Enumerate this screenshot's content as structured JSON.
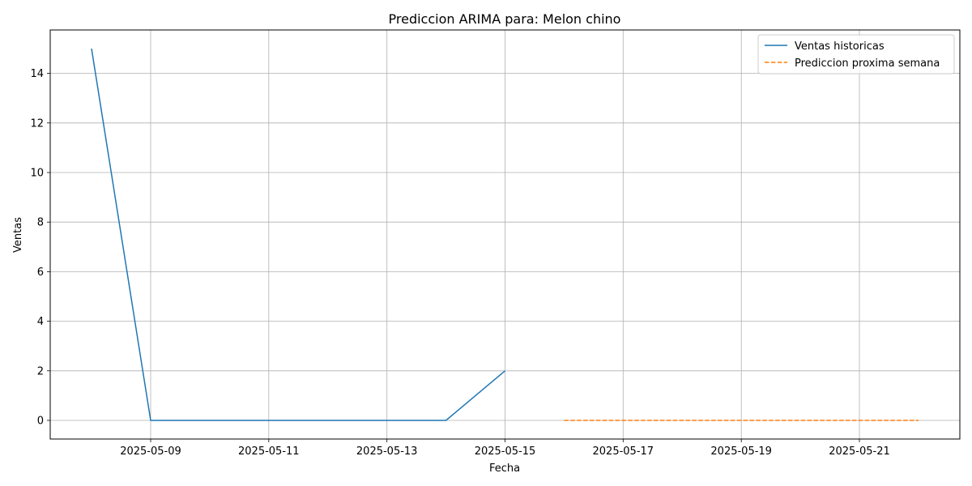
{
  "chart_data": {
    "type": "line",
    "title": "Prediccion ARIMA para: Melon chino",
    "xlabel": "Fecha",
    "ylabel": "Ventas",
    "grid": true,
    "legend_position": "top-right",
    "x_ticks": [
      "2025-05-09",
      "2025-05-11",
      "2025-05-13",
      "2025-05-15",
      "2025-05-17",
      "2025-05-19",
      "2025-05-21"
    ],
    "y_ticks": [
      0,
      2,
      4,
      6,
      8,
      10,
      12,
      14
    ],
    "xlim": [
      "2025-05-07 07:12",
      "2025-05-22 16:48"
    ],
    "ylim": [
      -0.75,
      15.75
    ],
    "series": [
      {
        "name": "Ventas historicas",
        "color": "#1f77b4",
        "style": "solid",
        "x": [
          "2025-05-08",
          "2025-05-09",
          "2025-05-10",
          "2025-05-11",
          "2025-05-12",
          "2025-05-13",
          "2025-05-14",
          "2025-05-15"
        ],
        "values": [
          15,
          0,
          0,
          0,
          0,
          0,
          0,
          2
        ]
      },
      {
        "name": "Prediccion proxima semana",
        "color": "#ff7f0e",
        "style": "dashed",
        "x": [
          "2025-05-16",
          "2025-05-17",
          "2025-05-18",
          "2025-05-19",
          "2025-05-20",
          "2025-05-21",
          "2025-05-22"
        ],
        "values": [
          0,
          0,
          0,
          0,
          0,
          0,
          0
        ]
      }
    ]
  }
}
